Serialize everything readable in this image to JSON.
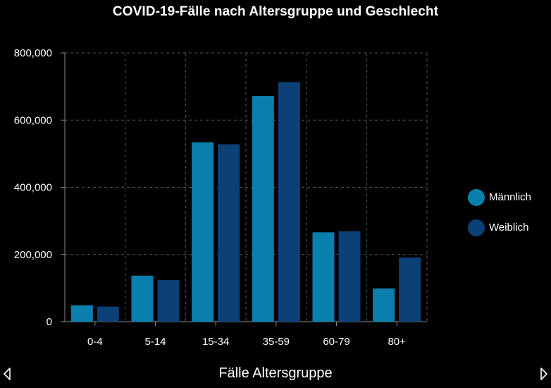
{
  "chart_data": {
    "type": "bar",
    "title": "COVID-19-Fälle nach Altersgruppe und Geschlecht",
    "categories": [
      "0-4",
      "5-14",
      "15-34",
      "35-59",
      "60-79",
      "80+"
    ],
    "series": [
      {
        "name": "Männlich",
        "color": "#0a7fad",
        "values": [
          49000,
          137000,
          534000,
          672000,
          266000,
          99000
        ]
      },
      {
        "name": "Weiblich",
        "color": "#0c4177",
        "values": [
          45000,
          124000,
          528000,
          713000,
          269000,
          191000
        ]
      }
    ],
    "ylim": [
      0,
      800000
    ],
    "yticks": [
      "0",
      "200,000",
      "400,000",
      "600,000",
      "800,000"
    ],
    "ytick_values": [
      0,
      200000,
      400000,
      600000,
      800000
    ],
    "grid": true,
    "legend_position": "right"
  },
  "footer": {
    "label": "Fälle Altersgruppe",
    "prev_icon": "triangle-left-icon",
    "next_icon": "triangle-right-icon"
  }
}
